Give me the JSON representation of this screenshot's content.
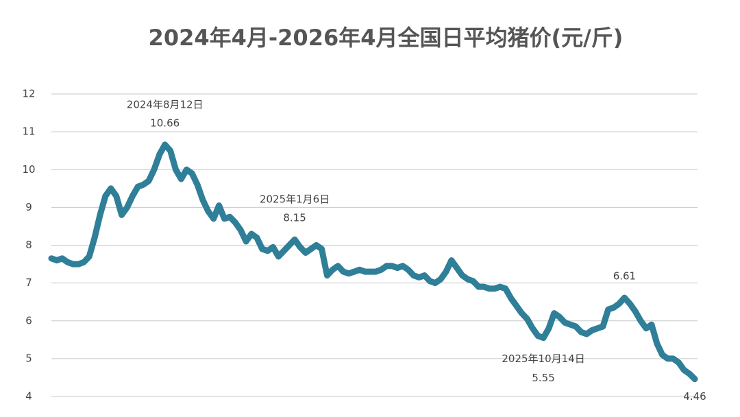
{
  "chart_data": {
    "type": "line",
    "title": "2024年4月-2026年4月全国日平均猪价(元/斤)",
    "ylim": [
      4,
      12
    ],
    "yticks": [
      4,
      5,
      6,
      7,
      8,
      9,
      10,
      11,
      12
    ],
    "grid": true,
    "color": "#2f7f98",
    "categories": [
      null,
      null,
      null,
      null,
      null,
      null,
      null,
      null,
      null,
      null,
      null,
      null,
      null,
      null,
      null,
      null,
      null,
      null,
      null,
      null,
      null,
      null,
      null,
      null,
      null,
      null,
      null,
      null,
      null,
      null,
      null,
      null,
      null,
      null,
      null,
      null,
      null,
      null,
      null,
      null,
      null,
      null,
      null,
      null,
      null,
      null,
      null,
      null,
      null,
      null,
      null,
      null,
      null,
      null,
      null,
      null,
      null,
      null,
      null,
      null,
      null,
      null,
      null,
      null,
      null,
      null,
      null,
      null,
      null,
      null,
      null,
      null,
      null,
      null,
      null,
      null,
      null,
      null,
      null,
      null,
      null,
      null,
      null,
      null,
      null,
      null,
      null,
      null,
      null,
      null,
      null,
      null,
      null,
      null,
      null,
      null,
      null,
      null,
      null,
      null,
      null,
      null,
      null,
      null,
      null,
      null,
      null,
      null,
      null,
      null,
      null,
      null,
      null,
      null,
      null,
      null,
      null,
      null,
      null,
      null
    ],
    "values": [
      7.65,
      7.6,
      7.65,
      7.55,
      7.5,
      7.5,
      7.55,
      7.7,
      8.2,
      8.8,
      9.3,
      9.5,
      9.3,
      8.8,
      9.0,
      9.3,
      9.55,
      9.6,
      9.7,
      10.0,
      10.4,
      10.66,
      10.5,
      10.0,
      9.75,
      10.0,
      9.9,
      9.6,
      9.2,
      8.9,
      8.7,
      9.05,
      8.7,
      8.75,
      8.6,
      8.4,
      8.1,
      8.3,
      8.2,
      7.9,
      7.85,
      7.95,
      7.7,
      7.85,
      8.0,
      8.15,
      7.95,
      7.8,
      7.9,
      8.0,
      7.9,
      7.2,
      7.35,
      7.45,
      7.3,
      7.25,
      7.3,
      7.35,
      7.3,
      7.3,
      7.3,
      7.35,
      7.45,
      7.45,
      7.4,
      7.45,
      7.35,
      7.2,
      7.15,
      7.2,
      7.05,
      7.0,
      7.1,
      7.3,
      7.6,
      7.4,
      7.2,
      7.1,
      7.05,
      6.9,
      6.9,
      6.85,
      6.85,
      6.9,
      6.85,
      6.6,
      6.4,
      6.2,
      6.05,
      5.8,
      5.6,
      5.55,
      5.8,
      6.2,
      6.1,
      5.95,
      5.9,
      5.85,
      5.7,
      5.65,
      5.75,
      5.8,
      5.85,
      6.3,
      6.35,
      6.45,
      6.61,
      6.45,
      6.25,
      6.0,
      5.8,
      5.9,
      5.4,
      5.1,
      5.0,
      5.0,
      4.9,
      4.7,
      4.6,
      4.46
    ],
    "annotations": [
      {
        "text": "2024年8月12日",
        "value": 10.66,
        "side": "above"
      },
      {
        "text": "2025年1月6日",
        "value": 8.15,
        "side": "above"
      },
      {
        "text": "2025年10月14日",
        "value": 5.55,
        "side": "below"
      },
      {
        "value": 6.61,
        "side": "above"
      },
      {
        "value": 4.46,
        "side": "below"
      }
    ]
  }
}
